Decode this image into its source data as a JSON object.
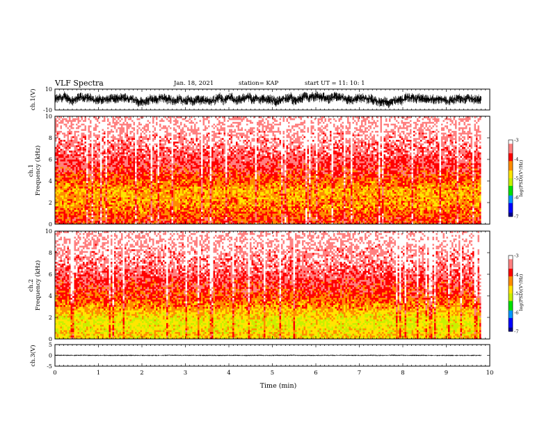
{
  "header": {
    "title": "VLF Spectra",
    "date": "Jan. 18, 2021",
    "station": "station= KAP",
    "start": "start  UT =   11: 10: 1"
  },
  "colors": {
    "colormap": [
      "#00008c",
      "#0000ff",
      "#0096ff",
      "#00e000",
      "#c8f000",
      "#ffe600",
      "#ff8c00",
      "#ff0000",
      "#ff8080",
      "#ffffff"
    ]
  },
  "chart_data": [
    {
      "type": "line",
      "ylabel": "ch.1(V)",
      "ylim": [
        -10,
        10
      ],
      "y_ticks": [
        "10",
        "-10"
      ],
      "xlim": [
        0,
        10
      ],
      "description_values": {
        "typical_range": [
          -6,
          6
        ]
      }
    },
    {
      "type": "heatmap",
      "ylabel_line1": "ch.1",
      "ylabel_line2": "Frequency (kHz)",
      "ylim": [
        0,
        10
      ],
      "y_ticks": [
        "0",
        "2",
        "4",
        "6",
        "8",
        "10"
      ],
      "xlim": [
        0,
        10
      ],
      "colorbar": {
        "label": "log(PSD)(V²/Hz)",
        "ticks": [
          "-3",
          "-4",
          "-5",
          "-6",
          "-7"
        ],
        "range": [
          -7,
          -3
        ]
      },
      "band_profile": [
        {
          "freq": 0.5,
          "level": -4.0
        },
        {
          "freq": 1.5,
          "level": -4.3
        },
        {
          "freq": 3.0,
          "level": -4.5
        },
        {
          "freq": 5.0,
          "level": -3.8
        },
        {
          "freq": 8.0,
          "level": -3.3
        },
        {
          "freq": 10.0,
          "level": -3.1
        }
      ]
    },
    {
      "type": "heatmap",
      "ylabel_line1": "ch.2",
      "ylabel_line2": "Frequency (kHz)",
      "ylim": [
        0,
        10
      ],
      "y_ticks": [
        "0",
        "2",
        "4",
        "6",
        "8",
        "10"
      ],
      "xlim": [
        0,
        10
      ],
      "colorbar": {
        "label": "log(PSD)(V²/Hz)",
        "ticks": [
          "-3",
          "-4",
          "-5",
          "-6",
          "-7"
        ],
        "range": [
          -7,
          -3
        ]
      },
      "band_profile": [
        {
          "freq": 0.5,
          "level": -4.7
        },
        {
          "freq": 1.5,
          "level": -5.0
        },
        {
          "freq": 2.5,
          "level": -4.6
        },
        {
          "freq": 4.0,
          "level": -4.0
        },
        {
          "freq": 7.0,
          "level": -3.4
        },
        {
          "freq": 10.0,
          "level": -3.1
        }
      ]
    },
    {
      "type": "line",
      "ylabel": "ch.3(V)",
      "ylim": [
        -5,
        5
      ],
      "y_ticks": [
        "5",
        "0",
        "-5"
      ],
      "xlim": [
        0,
        10
      ],
      "xlabel": "Time (min)",
      "x_ticks": [
        "0",
        "1",
        "2",
        "3",
        "4",
        "5",
        "6",
        "7",
        "8",
        "9",
        "10"
      ],
      "data_end": 9.8
    }
  ]
}
